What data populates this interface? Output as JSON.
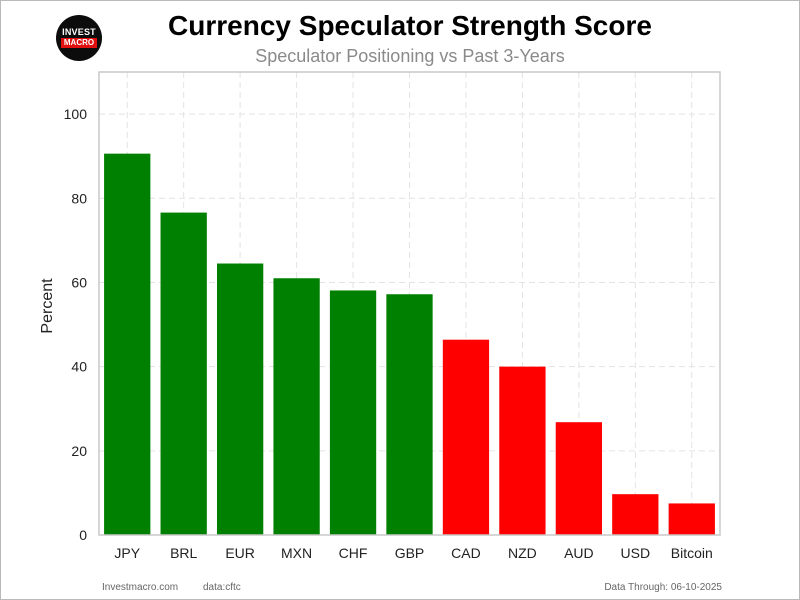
{
  "logo": {
    "line1": "INVEST",
    "line2": "MACRO"
  },
  "header": {
    "title": "Currency Speculator Strength Score",
    "subtitle": "Speculator Positioning vs Past 3-Years"
  },
  "footer": {
    "site": "Investmacro.com",
    "source": "data:cftc",
    "data_through": "Data Through: 06-10-2025"
  },
  "colors": {
    "positive": "#008000",
    "negative": "#ff0000",
    "grid": "#e3e3e3",
    "axis": "#c8c8c8"
  },
  "chart_data": {
    "type": "bar",
    "title": "Currency Speculator Strength Score",
    "subtitle": "Speculator Positioning vs Past 3-Years",
    "xlabel": "",
    "ylabel": "Percent",
    "ylim": [
      0,
      110
    ],
    "yticks": [
      0,
      20,
      40,
      60,
      80,
      100
    ],
    "grid": true,
    "categories": [
      "JPY",
      "BRL",
      "EUR",
      "MXN",
      "CHF",
      "GBP",
      "CAD",
      "NZD",
      "AUD",
      "USD",
      "Bitcoin"
    ],
    "values": [
      90.6,
      76.6,
      64.5,
      61.0,
      58.1,
      57.2,
      46.4,
      40.0,
      26.8,
      9.7,
      7.5
    ],
    "bar_colors": [
      "#008000",
      "#008000",
      "#008000",
      "#008000",
      "#008000",
      "#008000",
      "#ff0000",
      "#ff0000",
      "#ff0000",
      "#ff0000",
      "#ff0000"
    ]
  }
}
